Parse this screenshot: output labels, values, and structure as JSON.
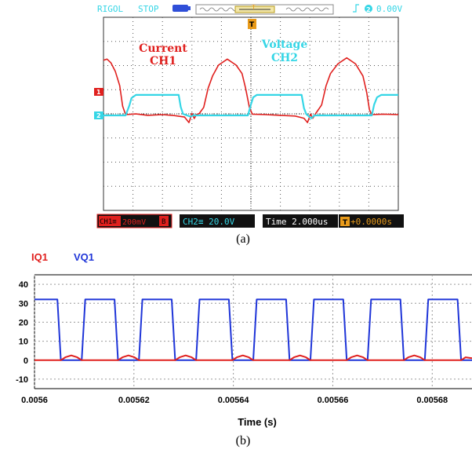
{
  "scope": {
    "header": {
      "brand": "RIGOL",
      "run_state": "STOP",
      "trigger_label": "T",
      "trigger_readout": "0.00V",
      "trigger_icon": "rising-edge-icon",
      "trigger_channel": "2"
    },
    "trace_labels": {
      "current": {
        "line1": "Current",
        "line2": "CH1"
      },
      "voltage": {
        "line1": "Voltage",
        "line2": "CH2"
      }
    },
    "channel_markers": {
      "ch1": "1",
      "ch2": "2",
      "trigger": "T"
    },
    "footer": {
      "ch1_box": "CH1≡",
      "ch1_scale": "200mV",
      "ch1_suffix": "B",
      "ch2_box": "CH2≡ 20.0V",
      "time_box": "Time 2.000us",
      "delay_icon": "T",
      "delay_value": "+0.0000s"
    },
    "colors": {
      "ch1": "#e0201e",
      "ch2": "#35d6e6",
      "trigger": "#e89a1a",
      "background": "#ffffff",
      "grid": "#555555"
    }
  },
  "caption_a": "(a)",
  "caption_b": "(b)",
  "chart_data": [
    {
      "type": "line",
      "title": "",
      "xlabel": "",
      "ylabel": "",
      "grid": true,
      "divisions": {
        "x": 10,
        "y": 8
      },
      "time_per_div": "2.000us",
      "series": [
        {
          "name": "Current CH1",
          "color": "#e0201e",
          "points": [
            [
              -5.0,
              2.25
            ],
            [
              -4.88,
              2.3
            ],
            [
              -4.75,
              2.15
            ],
            [
              -4.6,
              1.8
            ],
            [
              -4.45,
              1.2
            ],
            [
              -4.35,
              0.35
            ],
            [
              -4.25,
              0.0
            ],
            [
              -3.9,
              0.03
            ],
            [
              -3.5,
              -0.03
            ],
            [
              -3.0,
              0.0
            ],
            [
              -2.6,
              -0.04
            ],
            [
              -2.25,
              -0.1
            ],
            [
              -2.1,
              -0.33
            ],
            [
              -2.0,
              0.05
            ],
            [
              -1.92,
              -0.16
            ],
            [
              -1.85,
              0.0
            ],
            [
              -1.75,
              0.05
            ],
            [
              -1.6,
              0.3
            ],
            [
              -1.45,
              1.1
            ],
            [
              -1.3,
              1.6
            ],
            [
              -1.1,
              2.05
            ],
            [
              -0.8,
              2.3
            ],
            [
              -0.5,
              2.05
            ],
            [
              -0.3,
              1.7
            ],
            [
              -0.18,
              1.1
            ],
            [
              -0.05,
              0.3
            ],
            [
              0.05,
              0.02
            ],
            [
              0.5,
              0.0
            ],
            [
              1.0,
              -0.03
            ],
            [
              1.5,
              -0.06
            ],
            [
              1.8,
              -0.15
            ],
            [
              1.92,
              -0.33
            ],
            [
              2.02,
              0.02
            ],
            [
              2.1,
              -0.15
            ],
            [
              2.2,
              0.05
            ],
            [
              2.4,
              0.4
            ],
            [
              2.55,
              1.2
            ],
            [
              2.7,
              1.7
            ],
            [
              2.95,
              2.1
            ],
            [
              3.25,
              2.35
            ],
            [
              3.55,
              2.1
            ],
            [
              3.8,
              1.6
            ],
            [
              3.93,
              0.9
            ],
            [
              4.02,
              0.2
            ],
            [
              4.1,
              0.0
            ],
            [
              4.5,
              0.02
            ],
            [
              5.0,
              0.0
            ]
          ]
        },
        {
          "name": "Voltage CH2",
          "color": "#35d6e6",
          "points": [
            [
              -5.0,
              0.0
            ],
            [
              -4.25,
              0.0
            ],
            [
              -4.12,
              0.42
            ],
            [
              -4.05,
              0.72
            ],
            [
              -3.9,
              0.85
            ],
            [
              -2.6,
              0.85
            ],
            [
              -2.45,
              0.85
            ],
            [
              -2.38,
              0.35
            ],
            [
              -2.3,
              0.06
            ],
            [
              -2.05,
              -0.05
            ],
            [
              -1.95,
              0.0
            ],
            [
              -1.45,
              0.0
            ],
            [
              -0.1,
              0.0
            ],
            [
              0.0,
              0.45
            ],
            [
              0.08,
              0.75
            ],
            [
              0.2,
              0.85
            ],
            [
              1.6,
              0.85
            ],
            [
              1.72,
              0.85
            ],
            [
              1.8,
              0.3
            ],
            [
              1.88,
              0.05
            ],
            [
              2.05,
              -0.12
            ],
            [
              2.15,
              0.0
            ],
            [
              4.1,
              0.0
            ],
            [
              4.18,
              0.45
            ],
            [
              4.28,
              0.75
            ],
            [
              4.42,
              0.85
            ],
            [
              5.0,
              0.85
            ]
          ]
        }
      ]
    },
    {
      "type": "line",
      "title": "",
      "xlabel": "Time (s)",
      "ylabel": "",
      "xlim": [
        0.0056,
        0.005688
      ],
      "ylim": [
        -15,
        45
      ],
      "grid": true,
      "x_ticks": [
        0.0056,
        0.00562,
        0.00564,
        0.00566,
        0.00568
      ],
      "x_tick_labels": [
        "0.0056",
        "0.00562",
        "0.00564",
        "0.00566",
        "0.00568"
      ],
      "y_ticks": [
        -10,
        0,
        10,
        20,
        30,
        40
      ],
      "y_tick_labels": [
        "-10",
        "0",
        "10",
        "20",
        "30",
        "40"
      ],
      "legend": [
        "IQ1",
        "VQ1"
      ],
      "legend_position": "top-left",
      "pulse_period_s": 1.15e-05,
      "series": [
        {
          "name": "VQ1",
          "color": "#1f35d8",
          "points": [
            [
              0.0056,
              32
            ],
            [
              0.0056046,
              32
            ],
            [
              0.0056053,
              0
            ],
            [
              0.0056095,
              0
            ],
            [
              0.0056102,
              32
            ],
            [
              0.0056161,
              32
            ],
            [
              0.0056168,
              0
            ],
            [
              0.005621,
              0
            ],
            [
              0.0056217,
              32
            ],
            [
              0.0056276,
              32
            ],
            [
              0.0056283,
              0
            ],
            [
              0.0056325,
              0
            ],
            [
              0.0056332,
              32
            ],
            [
              0.0056391,
              32
            ],
            [
              0.0056398,
              0
            ],
            [
              0.005644,
              0
            ],
            [
              0.0056447,
              32
            ],
            [
              0.0056506,
              32
            ],
            [
              0.0056513,
              0
            ],
            [
              0.0056555,
              0
            ],
            [
              0.0056562,
              32
            ],
            [
              0.0056621,
              32
            ],
            [
              0.0056628,
              0
            ],
            [
              0.005667,
              0
            ],
            [
              0.0056677,
              32
            ],
            [
              0.0056736,
              32
            ],
            [
              0.0056743,
              0
            ],
            [
              0.0056785,
              0
            ],
            [
              0.0056792,
              32
            ],
            [
              0.0056851,
              32
            ],
            [
              0.0056858,
              0
            ],
            [
              0.005688,
              0
            ]
          ]
        },
        {
          "name": "IQ1",
          "color": "#e0201e",
          "points": [
            [
              0.0056,
              0
            ],
            [
              0.0056053,
              0
            ],
            [
              0.0056062,
              1.5
            ],
            [
              0.0056074,
              2.5
            ],
            [
              0.0056086,
              1.5
            ],
            [
              0.0056095,
              0
            ],
            [
              0.0056168,
              0
            ],
            [
              0.0056177,
              1.5
            ],
            [
              0.0056189,
              2.5
            ],
            [
              0.0056201,
              1.5
            ],
            [
              0.005621,
              0
            ],
            [
              0.0056283,
              0
            ],
            [
              0.0056292,
              1.5
            ],
            [
              0.0056304,
              2.5
            ],
            [
              0.0056316,
              1.5
            ],
            [
              0.0056325,
              0
            ],
            [
              0.0056398,
              0
            ],
            [
              0.0056407,
              1.5
            ],
            [
              0.0056419,
              2.5
            ],
            [
              0.0056431,
              1.5
            ],
            [
              0.005644,
              0
            ],
            [
              0.0056513,
              0
            ],
            [
              0.0056522,
              1.5
            ],
            [
              0.0056534,
              2.5
            ],
            [
              0.0056546,
              1.5
            ],
            [
              0.0056555,
              0
            ],
            [
              0.0056628,
              0
            ],
            [
              0.0056637,
              1.5
            ],
            [
              0.0056649,
              2.5
            ],
            [
              0.0056661,
              1.5
            ],
            [
              0.005667,
              0
            ],
            [
              0.0056743,
              0
            ],
            [
              0.0056752,
              1.5
            ],
            [
              0.0056764,
              2.5
            ],
            [
              0.0056776,
              1.5
            ],
            [
              0.0056785,
              0
            ],
            [
              0.0056858,
              0
            ],
            [
              0.0056867,
              1.5
            ],
            [
              0.005688,
              1.0
            ]
          ]
        }
      ]
    }
  ]
}
